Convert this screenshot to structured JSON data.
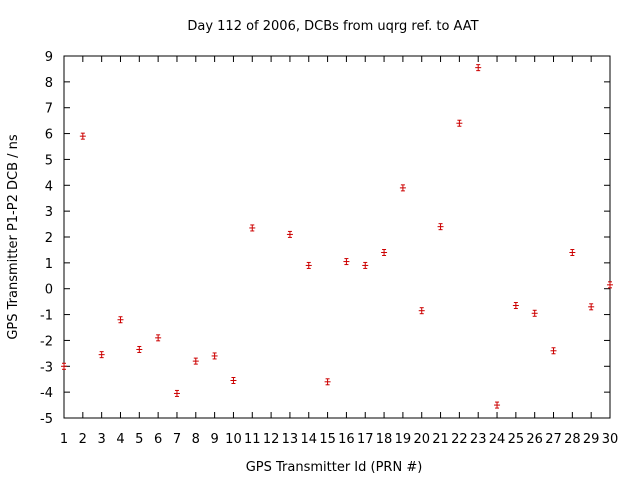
{
  "chart_data": {
    "type": "scatter",
    "title": "Day 112 of 2006, DCBs from uqrg ref. to AAT",
    "xlabel": "GPS Transmitter Id (PRN #)",
    "ylabel": "GPS Transmitter P1-P2 DCB / ns",
    "xlim": [
      1,
      30
    ],
    "ylim": [
      -5,
      9
    ],
    "grid": false,
    "legend": "none",
    "marker_color": "#cc0000",
    "x_ticks": [
      "1",
      "2",
      "3",
      "4",
      "5",
      "6",
      "7",
      "8",
      "9",
      "10",
      "11",
      "12",
      "13",
      "14",
      "15",
      "16",
      "17",
      "18",
      "19",
      "20",
      "21",
      "22",
      "23",
      "24",
      "25",
      "26",
      "27",
      "28",
      "29",
      "30"
    ],
    "y_ticks": [
      "-5",
      "-4",
      "-3",
      "-2",
      "-1",
      "0",
      "1",
      "2",
      "3",
      "4",
      "5",
      "6",
      "7",
      "8",
      "9"
    ],
    "points": [
      {
        "x": 1,
        "y": -3.0
      },
      {
        "x": 2,
        "y": 5.9
      },
      {
        "x": 3,
        "y": -2.55
      },
      {
        "x": 4,
        "y": -1.2
      },
      {
        "x": 5,
        "y": -2.35
      },
      {
        "x": 6,
        "y": -1.9
      },
      {
        "x": 7,
        "y": -4.05
      },
      {
        "x": 8,
        "y": -2.8
      },
      {
        "x": 9,
        "y": -2.6
      },
      {
        "x": 10,
        "y": -3.55
      },
      {
        "x": 11,
        "y": 2.35
      },
      {
        "x": 13,
        "y": 2.1
      },
      {
        "x": 14,
        "y": 0.9
      },
      {
        "x": 15,
        "y": -3.6
      },
      {
        "x": 16,
        "y": 1.05
      },
      {
        "x": 17,
        "y": 0.9
      },
      {
        "x": 18,
        "y": 1.4
      },
      {
        "x": 19,
        "y": 3.9
      },
      {
        "x": 20,
        "y": -0.85
      },
      {
        "x": 21,
        "y": 2.4
      },
      {
        "x": 22,
        "y": 6.4
      },
      {
        "x": 23,
        "y": 8.55
      },
      {
        "x": 24,
        "y": -4.5
      },
      {
        "x": 25,
        "y": -0.65
      },
      {
        "x": 26,
        "y": -0.95
      },
      {
        "x": 27,
        "y": -2.4
      },
      {
        "x": 28,
        "y": 1.4
      },
      {
        "x": 29,
        "y": -0.7
      },
      {
        "x": 30,
        "y": 0.15
      }
    ]
  }
}
